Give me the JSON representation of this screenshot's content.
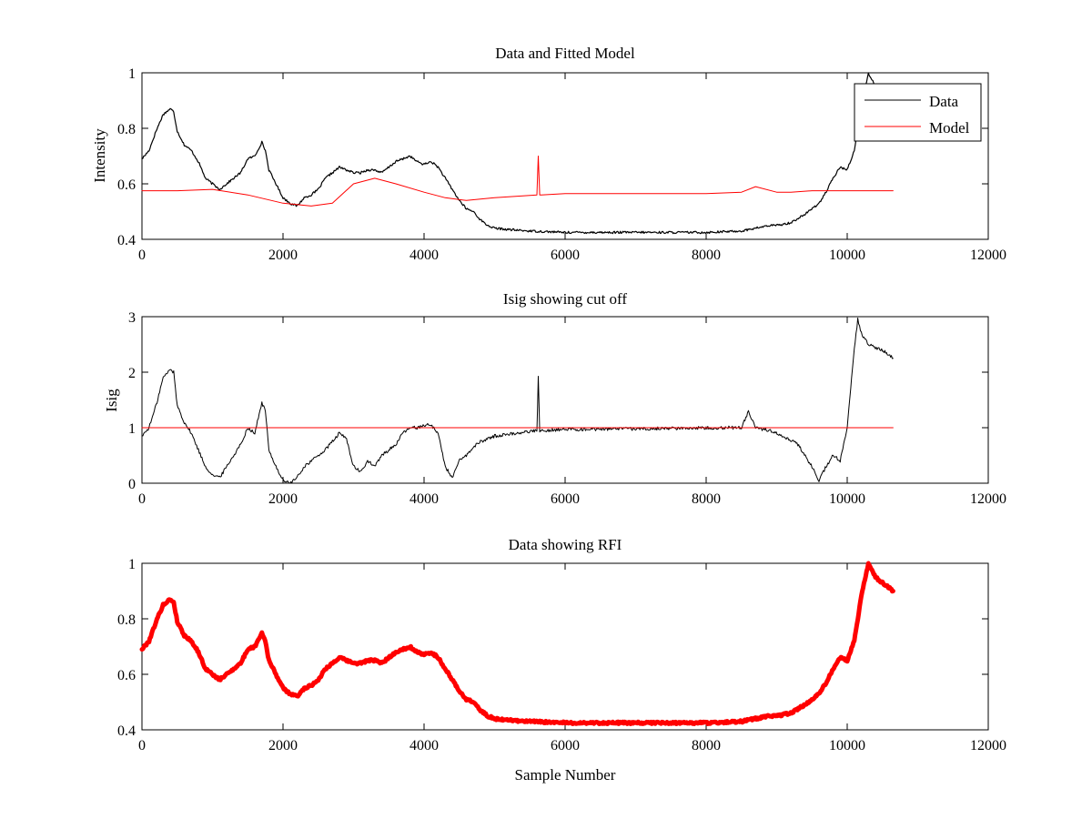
{
  "chart_data": [
    {
      "type": "line",
      "title": "Data and Fitted Model",
      "xlabel": "",
      "ylabel": "Intensity",
      "xlim": [
        0,
        12000
      ],
      "ylim": [
        0.4,
        1.0
      ],
      "xticks": [
        "0",
        "2000",
        "4000",
        "6000",
        "8000",
        "10000",
        "12000"
      ],
      "yticks": [
        "0.4",
        "0.6",
        "0.8",
        "1"
      ],
      "grid": false,
      "legend": {
        "placement": "top-right",
        "entries": [
          "Data",
          "Model"
        ]
      },
      "series": [
        {
          "name": "Data",
          "color": "#000000",
          "width": 1.2,
          "noise": 0.004,
          "x": [
            0,
            100,
            200,
            300,
            400,
            450,
            500,
            600,
            700,
            800,
            900,
            1000,
            1100,
            1200,
            1300,
            1400,
            1500,
            1600,
            1700,
            1750,
            1800,
            1900,
            2000,
            2100,
            2200,
            2300,
            2400,
            2500,
            2600,
            2700,
            2800,
            2900,
            3000,
            3100,
            3200,
            3300,
            3400,
            3500,
            3600,
            3700,
            3800,
            3900,
            4000,
            4100,
            4200,
            4300,
            4400,
            4500,
            4600,
            4700,
            4800,
            4900,
            5000,
            5200,
            5500,
            6000,
            7000,
            8000,
            8500,
            8700,
            8900,
            9000,
            9200,
            9400,
            9600,
            9700,
            9800,
            9900,
            10000,
            10100,
            10200,
            10300,
            10400,
            10500,
            10650
          ],
          "y": [
            0.69,
            0.72,
            0.79,
            0.85,
            0.87,
            0.86,
            0.79,
            0.74,
            0.72,
            0.68,
            0.62,
            0.6,
            0.58,
            0.6,
            0.62,
            0.64,
            0.69,
            0.7,
            0.75,
            0.72,
            0.65,
            0.6,
            0.55,
            0.53,
            0.52,
            0.55,
            0.56,
            0.58,
            0.62,
            0.64,
            0.66,
            0.65,
            0.64,
            0.64,
            0.65,
            0.65,
            0.64,
            0.66,
            0.68,
            0.69,
            0.7,
            0.68,
            0.67,
            0.68,
            0.66,
            0.62,
            0.58,
            0.54,
            0.51,
            0.5,
            0.47,
            0.45,
            0.44,
            0.435,
            0.43,
            0.425,
            0.425,
            0.425,
            0.43,
            0.44,
            0.45,
            0.45,
            0.46,
            0.49,
            0.53,
            0.57,
            0.62,
            0.66,
            0.65,
            0.72,
            0.88,
            1.0,
            0.95,
            0.93,
            0.9
          ]
        },
        {
          "name": "Model",
          "color": "#ff0000",
          "width": 1.0,
          "noise": 0.0,
          "x": [
            0,
            500,
            1000,
            1500,
            2000,
            2400,
            2700,
            3000,
            3300,
            3600,
            4000,
            4300,
            4600,
            4800,
            5000,
            5600,
            5620,
            5640,
            5660,
            6000,
            7000,
            8000,
            8500,
            8700,
            9000,
            9200,
            9500,
            10000,
            10650
          ],
          "y": [
            0.575,
            0.575,
            0.58,
            0.56,
            0.53,
            0.52,
            0.53,
            0.6,
            0.62,
            0.6,
            0.57,
            0.55,
            0.54,
            0.545,
            0.55,
            0.56,
            0.7,
            0.56,
            0.56,
            0.565,
            0.565,
            0.565,
            0.57,
            0.59,
            0.57,
            0.57,
            0.575,
            0.575,
            0.575
          ]
        }
      ]
    },
    {
      "type": "line",
      "title": "Isig showing cut off",
      "xlabel": "",
      "ylabel": "Isig",
      "xlim": [
        0,
        12000
      ],
      "ylim": [
        0,
        3
      ],
      "xticks": [
        "0",
        "2000",
        "4000",
        "6000",
        "8000",
        "10000",
        "12000"
      ],
      "yticks": [
        "0",
        "1",
        "2",
        "3"
      ],
      "grid": false,
      "series": [
        {
          "color": "#000000",
          "width": 1.0,
          "noise": 0.03,
          "x": [
            0,
            100,
            200,
            300,
            400,
            450,
            500,
            600,
            700,
            800,
            900,
            1000,
            1100,
            1200,
            1300,
            1400,
            1500,
            1600,
            1700,
            1750,
            1800,
            1900,
            2000,
            2100,
            2200,
            2300,
            2400,
            2500,
            2600,
            2700,
            2800,
            2900,
            3000,
            3100,
            3200,
            3300,
            3400,
            3500,
            3600,
            3700,
            3800,
            3900,
            4000,
            4100,
            4200,
            4300,
            4400,
            4500,
            4600,
            4700,
            4800,
            5000,
            5300,
            5600,
            5620,
            5640,
            5660,
            6000,
            7000,
            8000,
            8500,
            8600,
            8700,
            8900,
            9100,
            9300,
            9500,
            9600,
            9700,
            9800,
            9900,
            10000,
            10100,
            10150,
            10200,
            10300,
            10400,
            10500,
            10650
          ],
          "y": [
            0.85,
            1.0,
            1.4,
            1.9,
            2.05,
            2.0,
            1.4,
            1.1,
            0.9,
            0.6,
            0.3,
            0.15,
            0.1,
            0.3,
            0.5,
            0.7,
            1.0,
            0.9,
            1.45,
            1.3,
            0.6,
            0.3,
            0.05,
            0.0,
            0.1,
            0.3,
            0.4,
            0.5,
            0.6,
            0.75,
            0.9,
            0.8,
            0.3,
            0.2,
            0.4,
            0.3,
            0.5,
            0.6,
            0.7,
            0.9,
            1.0,
            1.0,
            1.05,
            1.05,
            0.9,
            0.3,
            0.1,
            0.4,
            0.5,
            0.65,
            0.75,
            0.85,
            0.9,
            0.95,
            1.9,
            0.95,
            0.95,
            0.97,
            0.98,
            1.0,
            1.0,
            1.3,
            1.0,
            0.95,
            0.85,
            0.7,
            0.3,
            0.05,
            0.3,
            0.5,
            0.4,
            1.0,
            2.4,
            2.95,
            2.7,
            2.5,
            2.45,
            2.4,
            2.25
          ]
        },
        {
          "color": "#ff0000",
          "width": 1.0,
          "noise": 0.0,
          "x": [
            0,
            10650
          ],
          "y": [
            1.0,
            1.0
          ]
        }
      ]
    },
    {
      "type": "line",
      "title": "Data showing RFI",
      "xlabel": "Sample Number",
      "ylabel": "",
      "xlim": [
        0,
        12000
      ],
      "ylim": [
        0.4,
        1.0
      ],
      "xticks": [
        "0",
        "2000",
        "4000",
        "6000",
        "8000",
        "10000",
        "12000"
      ],
      "yticks": [
        "0.4",
        "0.6",
        "0.8",
        "1"
      ],
      "grid": false,
      "series": [
        {
          "color": "#ff0000",
          "width": 5.0,
          "noise": 0.004,
          "x": [
            0,
            100,
            200,
            300,
            400,
            450,
            500,
            600,
            700,
            800,
            900,
            1000,
            1100,
            1200,
            1300,
            1400,
            1500,
            1600,
            1700,
            1750,
            1800,
            1900,
            2000,
            2100,
            2200,
            2300,
            2400,
            2500,
            2600,
            2700,
            2800,
            2900,
            3000,
            3100,
            3200,
            3300,
            3400,
            3500,
            3600,
            3700,
            3800,
            3900,
            4000,
            4100,
            4200,
            4300,
            4400,
            4500,
            4600,
            4700,
            4800,
            4900,
            5000,
            5200,
            5500,
            6000,
            7000,
            8000,
            8500,
            8700,
            8900,
            9000,
            9200,
            9400,
            9600,
            9700,
            9800,
            9900,
            10000,
            10100,
            10200,
            10300,
            10400,
            10500,
            10650
          ],
          "y": [
            0.69,
            0.72,
            0.79,
            0.85,
            0.87,
            0.86,
            0.79,
            0.74,
            0.72,
            0.68,
            0.62,
            0.6,
            0.58,
            0.6,
            0.62,
            0.64,
            0.69,
            0.7,
            0.75,
            0.72,
            0.65,
            0.6,
            0.55,
            0.53,
            0.52,
            0.55,
            0.56,
            0.58,
            0.62,
            0.64,
            0.66,
            0.65,
            0.64,
            0.64,
            0.65,
            0.65,
            0.64,
            0.66,
            0.68,
            0.69,
            0.7,
            0.68,
            0.67,
            0.68,
            0.66,
            0.62,
            0.58,
            0.54,
            0.51,
            0.5,
            0.47,
            0.45,
            0.44,
            0.435,
            0.43,
            0.425,
            0.425,
            0.425,
            0.43,
            0.44,
            0.45,
            0.45,
            0.46,
            0.49,
            0.53,
            0.57,
            0.62,
            0.66,
            0.65,
            0.72,
            0.88,
            1.0,
            0.95,
            0.93,
            0.9
          ]
        }
      ]
    }
  ]
}
